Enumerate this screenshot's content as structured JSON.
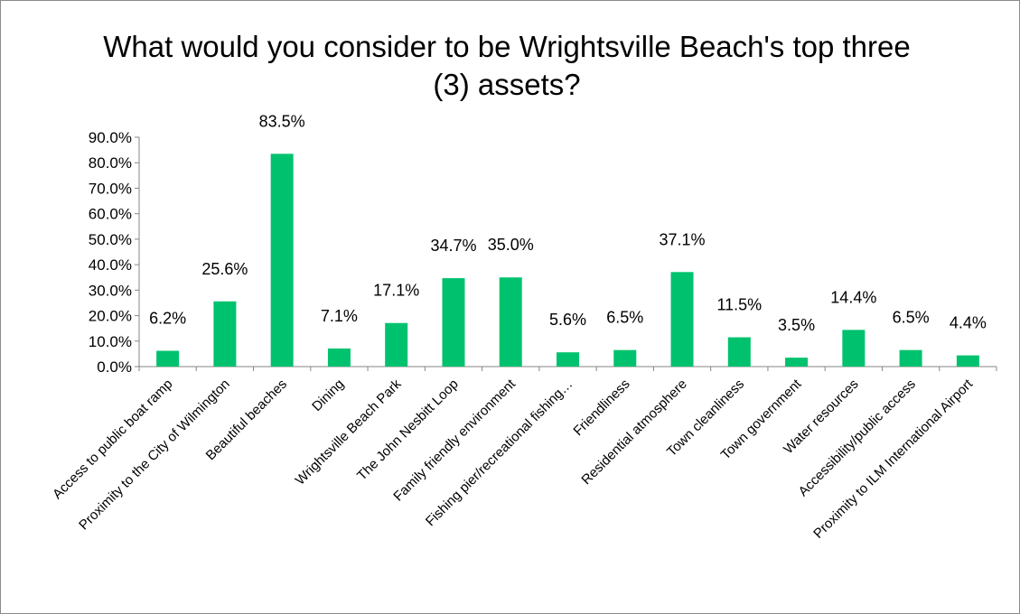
{
  "chart_data": {
    "type": "bar",
    "title": "What would you consider to be Wrightsville Beach's top three (3) assets?",
    "categories": [
      "Access to public boat ramp",
      "Proximity to the City of Wilmington",
      "Beautiful beaches",
      "Dining",
      "Wrightsville Beach Park",
      "The John Nesbitt Loop",
      "Family friendly environment",
      "Fishing pier/recreational fishing…",
      "Friendliness",
      "Residential atmosphere",
      "Town cleanliness",
      "Town government",
      "Water resources",
      "Accessibility/public access",
      "Proximity to ILM International Airport"
    ],
    "values": [
      6.2,
      25.6,
      83.5,
      7.1,
      17.1,
      34.7,
      35.0,
      5.6,
      6.5,
      37.1,
      11.5,
      3.5,
      14.4,
      6.5,
      4.4
    ],
    "data_labels": [
      "6.2%",
      "25.6%",
      "83.5%",
      "7.1%",
      "17.1%",
      "34.7%",
      "35.0%",
      "5.6%",
      "6.5%",
      "37.1%",
      "11.5%",
      "3.5%",
      "14.4%",
      "6.5%",
      "4.4%"
    ],
    "y_ticks": [
      "0.0%",
      "10.0%",
      "20.0%",
      "30.0%",
      "40.0%",
      "50.0%",
      "60.0%",
      "70.0%",
      "80.0%",
      "90.0%"
    ],
    "ylim": [
      0,
      90
    ],
    "xlabel": "",
    "ylabel": "",
    "grid": false,
    "legend": "none",
    "bar_color": "#00c26e"
  }
}
